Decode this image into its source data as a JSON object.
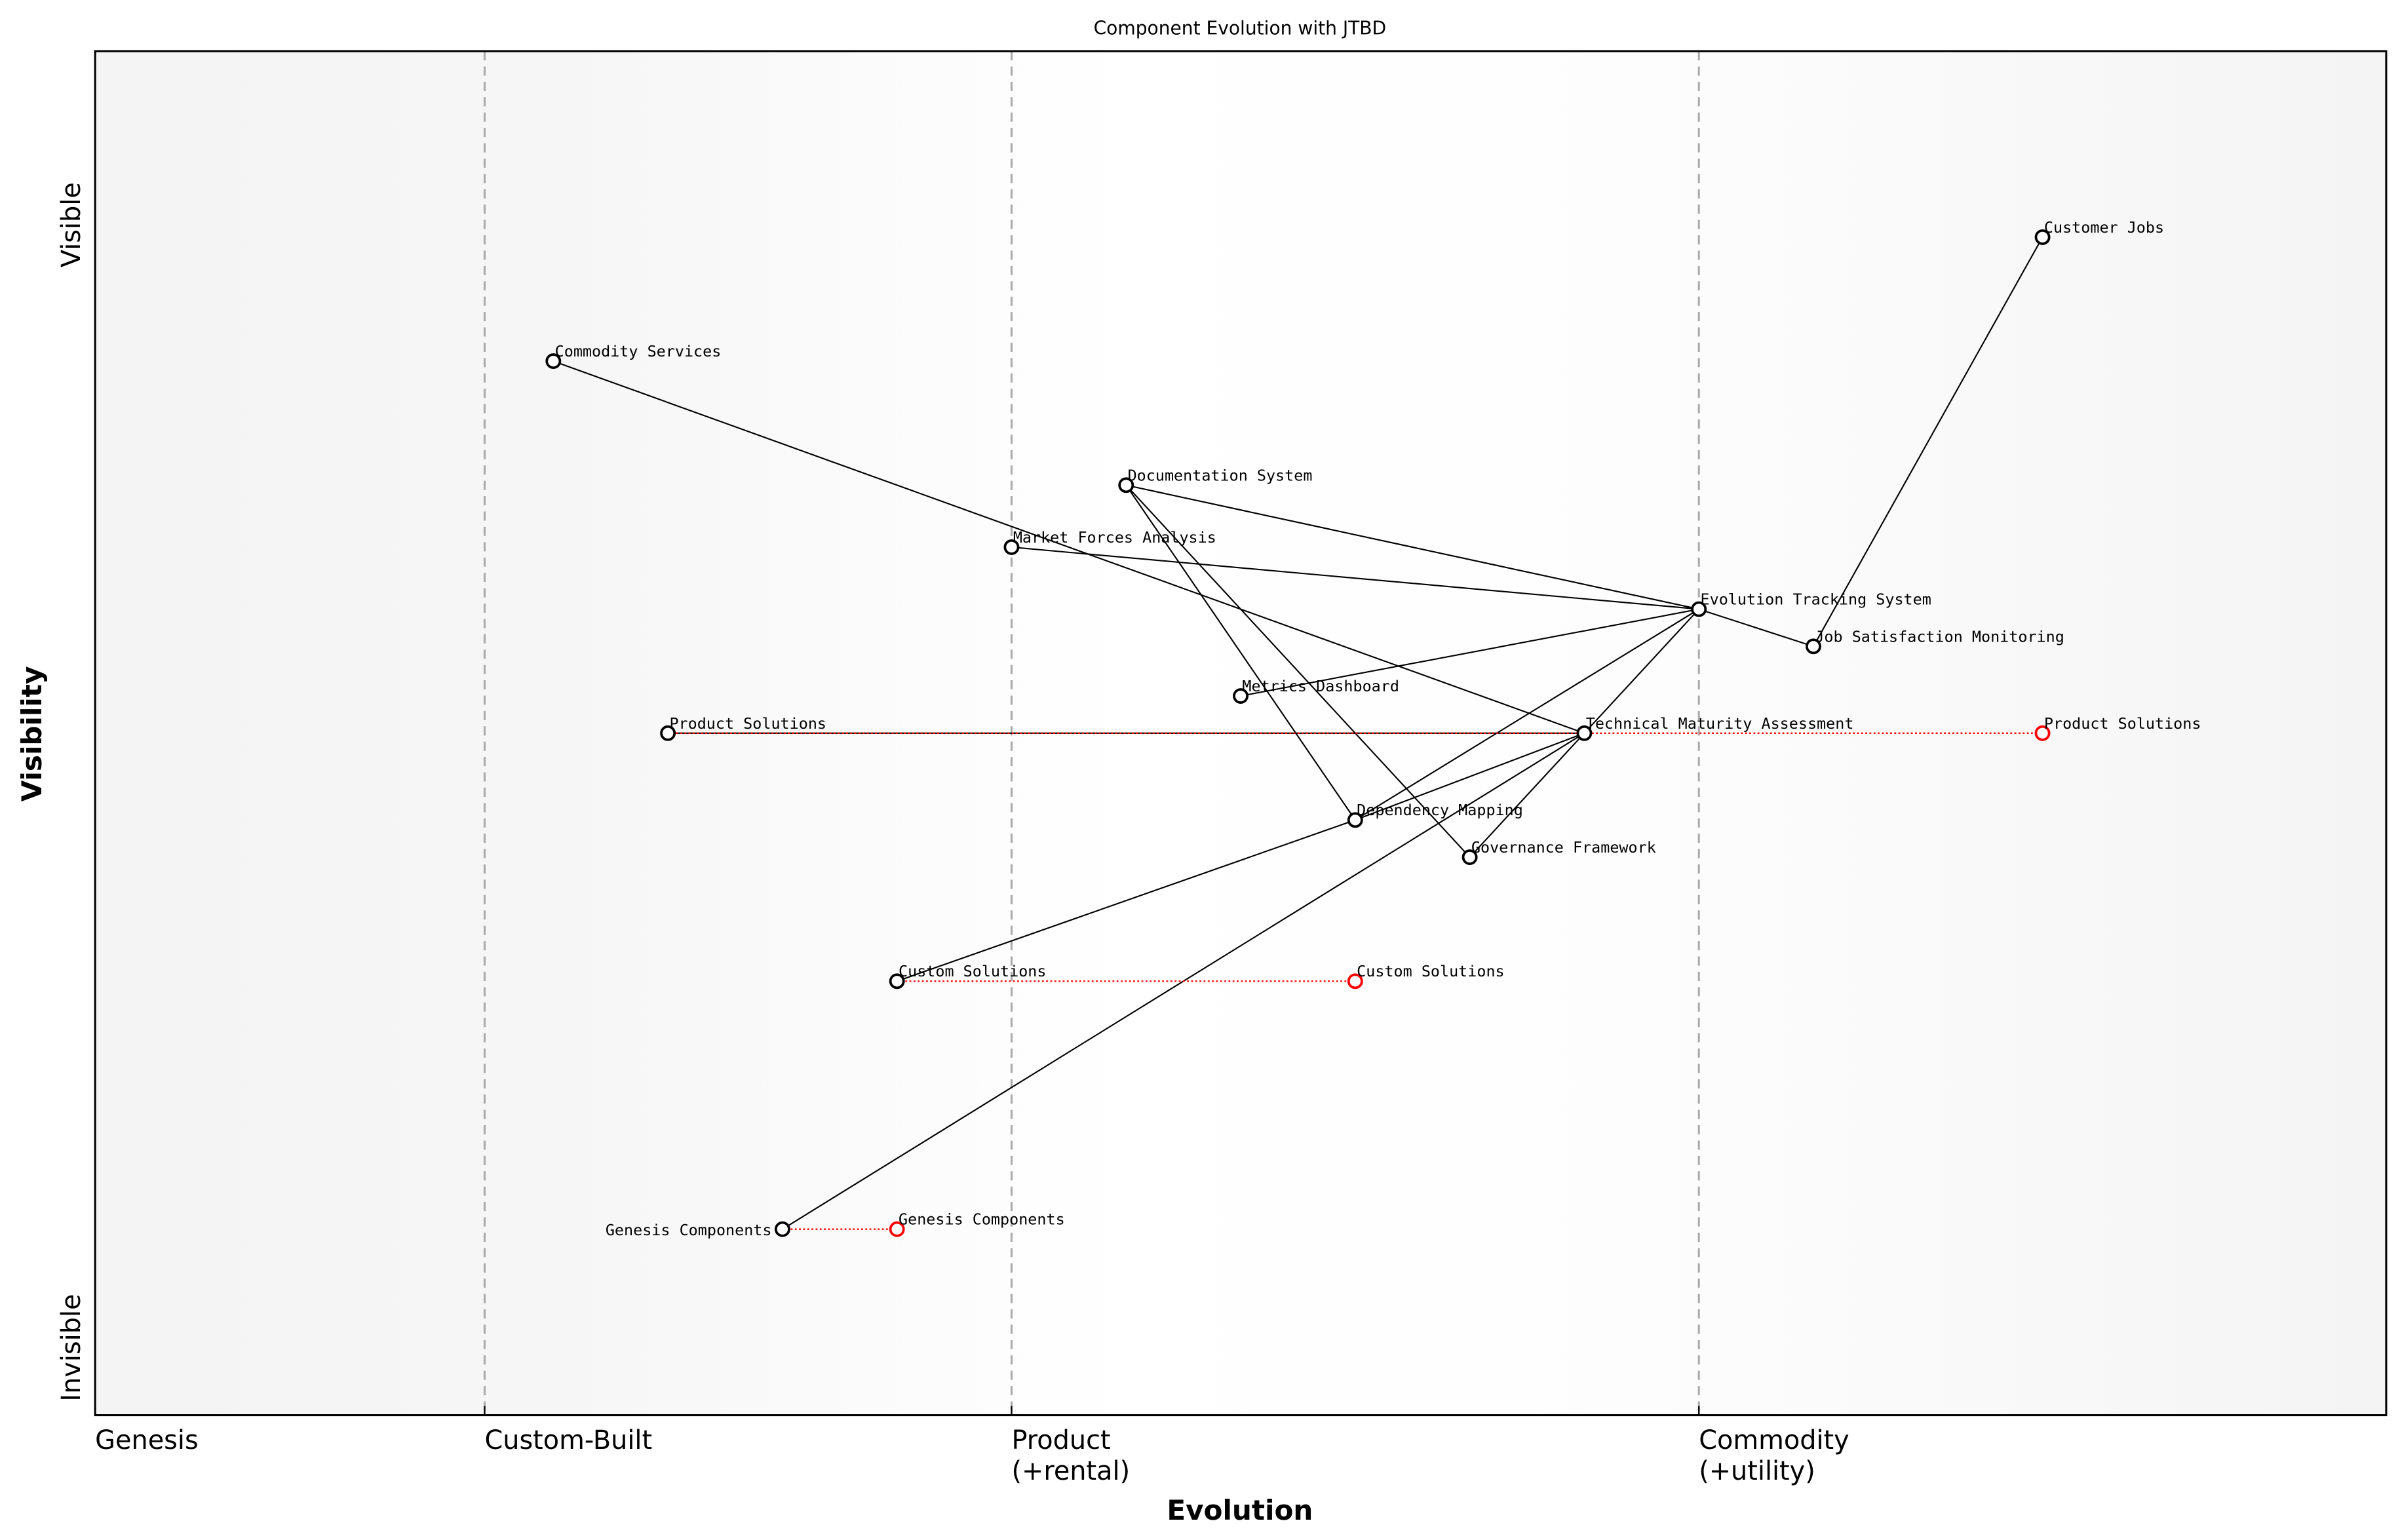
{
  "chart_data": {
    "type": "scatter",
    "title": "Component Evolution with JTBD",
    "xlabel": "Evolution",
    "ylabel": "Visibility",
    "xlim": [
      0,
      1
    ],
    "ylim": [
      -0.05,
      1.05
    ],
    "grid": false,
    "x_stage_ticks": [
      {
        "value": 0.0,
        "label": "Genesis"
      },
      {
        "value": 0.17,
        "label": "Custom-Built"
      },
      {
        "value": 0.4,
        "label": "Product\n(+rental)"
      },
      {
        "value": 0.7,
        "label": "Commodity\n(+utility)"
      }
    ],
    "stage_dividers": [
      0.17,
      0.4,
      0.7
    ],
    "y_ticks": [
      {
        "value": 0.9,
        "label": "Visible"
      },
      {
        "value": 0.0,
        "label": "Invisible"
      }
    ],
    "components": [
      {
        "name": "Customer Jobs",
        "x": 0.85,
        "y": 0.9
      },
      {
        "name": "Commodity Services",
        "x": 0.2,
        "y": 0.8
      },
      {
        "name": "Documentation System",
        "x": 0.45,
        "y": 0.7
      },
      {
        "name": "Market Forces Analysis",
        "x": 0.4,
        "y": 0.65
      },
      {
        "name": "Evolution Tracking System",
        "x": 0.7,
        "y": 0.6
      },
      {
        "name": "Job Satisfaction Monitoring",
        "x": 0.75,
        "y": 0.57
      },
      {
        "name": "Metrics Dashboard",
        "x": 0.5,
        "y": 0.53
      },
      {
        "name": "Product Solutions",
        "x": 0.25,
        "y": 0.5
      },
      {
        "name": "Technical Maturity Assessment",
        "x": 0.65,
        "y": 0.5
      },
      {
        "name": "Dependency Mapping",
        "x": 0.55,
        "y": 0.43
      },
      {
        "name": "Governance Framework",
        "x": 0.6,
        "y": 0.4
      },
      {
        "name": "Custom Solutions",
        "x": 0.35,
        "y": 0.3
      },
      {
        "name": "Genesis Components",
        "x": 0.3,
        "y": 0.1
      }
    ],
    "evolved": [
      {
        "name": "Product Solutions",
        "from_x": 0.25,
        "x": 0.85,
        "y": 0.5
      },
      {
        "name": "Custom Solutions",
        "from_x": 0.35,
        "x": 0.55,
        "y": 0.3
      },
      {
        "name": "Genesis Components",
        "from_x": 0.3,
        "x": 0.35,
        "y": 0.1
      }
    ],
    "links": [
      [
        "Customer Jobs",
        "Job Satisfaction Monitoring"
      ],
      [
        "Job Satisfaction Monitoring",
        "Evolution Tracking System"
      ],
      [
        "Evolution Tracking System",
        "Documentation System"
      ],
      [
        "Evolution Tracking System",
        "Market Forces Analysis"
      ],
      [
        "Evolution Tracking System",
        "Metrics Dashboard"
      ],
      [
        "Evolution Tracking System",
        "Dependency Mapping"
      ],
      [
        "Evolution Tracking System",
        "Technical Maturity Assessment"
      ],
      [
        "Commodity Services",
        "Technical Maturity Assessment"
      ],
      [
        "Documentation System",
        "Dependency Mapping"
      ],
      [
        "Documentation System",
        "Governance Framework"
      ],
      [
        "Technical Maturity Assessment",
        "Governance Framework"
      ],
      [
        "Technical Maturity Assessment",
        "Dependency Mapping"
      ],
      [
        "Custom Solutions",
        "Dependency Mapping"
      ],
      [
        "Genesis Components",
        "Technical Maturity Assessment"
      ],
      [
        "Product Solutions",
        "Technical Maturity Assessment"
      ]
    ],
    "colors": {
      "component": "#000000",
      "evolved": "#ff0000",
      "divider": "#aaaaaa",
      "bg_edge": "#f4f4f4",
      "bg_mid": "#ffffff"
    }
  }
}
